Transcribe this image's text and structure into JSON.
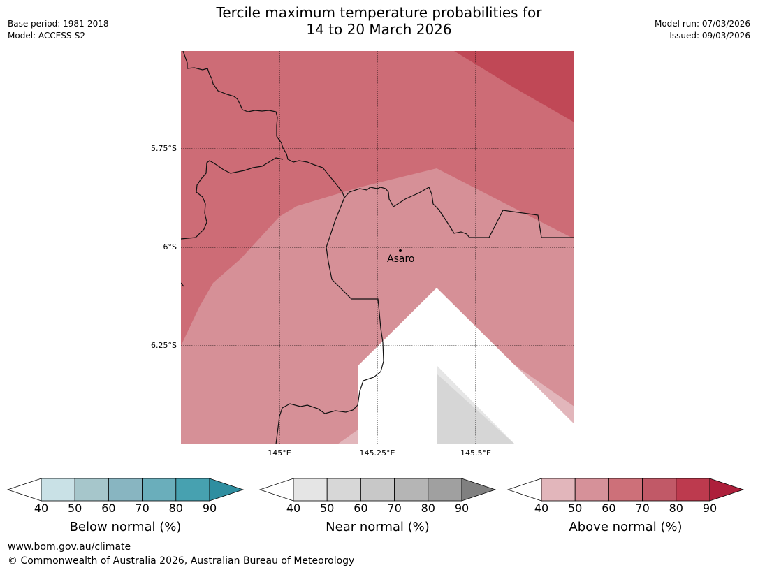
{
  "header": {
    "title_line1": "Tercile maximum temperature probabilities for",
    "title_line2": "14 to 20 March 2026",
    "base_period": "Base period: 1981-2018",
    "model": "Model: ACCESS-S2",
    "model_run": "Model run: 07/03/2026",
    "issued": "Issued: 09/03/2026"
  },
  "map": {
    "town": "Asaro",
    "lat_labels": [
      "5.75°S",
      "6°S",
      "6.25°S"
    ],
    "lon_labels": [
      "145°E",
      "145.25°E",
      "145.5°E"
    ]
  },
  "colorbars": [
    {
      "label": "Below normal (%)",
      "ticks": [
        "40",
        "50",
        "60",
        "70",
        "80",
        "90"
      ],
      "colors": [
        "#ffffff",
        "#c9e1e6",
        "#a6c6cb",
        "#88b5c1",
        "#6aaebb",
        "#47a1b0",
        "#2f8ea0"
      ]
    },
    {
      "label": "Near normal (%)",
      "ticks": [
        "40",
        "50",
        "60",
        "70",
        "80",
        "90"
      ],
      "colors": [
        "#ffffff",
        "#e5e5e5",
        "#d7d7d7",
        "#c8c8c8",
        "#b5b5b5",
        "#a0a0a0",
        "#808080"
      ]
    },
    {
      "label": "Above normal (%)",
      "ticks": [
        "40",
        "50",
        "60",
        "70",
        "80",
        "90"
      ],
      "colors": [
        "#ffffff",
        "#e2b6bb",
        "#d69199",
        "#cd7079",
        "#c15967",
        "#bd3a4e",
        "#ad1f3b"
      ]
    }
  ],
  "footer": {
    "website": "www.bom.gov.au/climate",
    "copyright": "© Commonwealth of Australia 2026, Australian Bureau of Meteorology"
  }
}
